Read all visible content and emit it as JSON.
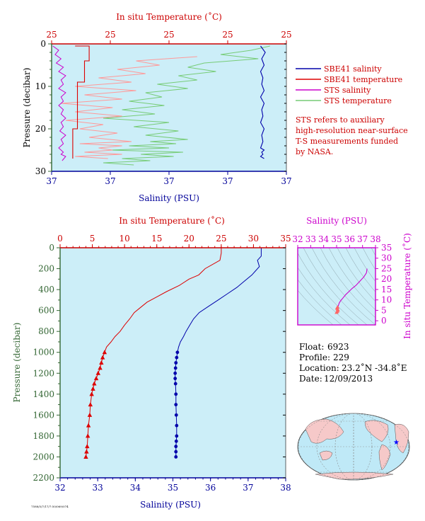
{
  "colors": {
    "plot_bg": "#cceef8",
    "sbe_salinity": "#0000aa",
    "sbe_temperature": "#dd0000",
    "sts_salinity": "#cc00cc",
    "sts_temperature": "#77cc77",
    "sts_temperature_pink": "#ff9999",
    "axis_red": "#cc0000",
    "axis_blue": "#000099",
    "axis_green": "#336633",
    "axis_magenta": "#cc00cc"
  },
  "legend": {
    "items": [
      {
        "label": "SBE41 salinity",
        "color": "#0000aa"
      },
      {
        "label": "SBE41 temperature",
        "color": "#dd0000"
      },
      {
        "label": "STS salinity",
        "color": "#cc00cc"
      },
      {
        "label": "STS temperature",
        "color": "#77cc77"
      }
    ],
    "note": [
      "STS refers to auxiliary",
      "high-resolution near-surface",
      "T-S measurements funded",
      "by NASA."
    ]
  },
  "info": {
    "float_label": "Float:",
    "float_value": "6923",
    "profile_label": "Profile:",
    "profile_value": "229",
    "location_label": "Location:",
    "location_value": "23.2˚N  -34.8˚E",
    "date_label": "Date:",
    "date_value": "12/09/2013"
  },
  "footer_id": "7588/5/7/17/7:50/069/074",
  "chart_data": [
    {
      "id": "near-surface",
      "type": "line",
      "top_axis_label": "In situ Temperature (˚C)",
      "bottom_axis_label": "Salinity (PSU)",
      "left_axis_label": "Pressure (decibar)",
      "top_ticks": [
        "25",
        "25",
        "25",
        "25",
        "25"
      ],
      "bottom_ticks": [
        "37",
        "37",
        "37",
        "37",
        "37"
      ],
      "left_ticks": [
        "0",
        "10",
        "20",
        "30"
      ],
      "ylim": [
        0,
        30
      ],
      "series": [
        {
          "key": "sts_temperature",
          "color": "#77cc77",
          "x": [
            0.93,
            0.85,
            0.72,
            0.88,
            0.65,
            0.58,
            0.7,
            0.54,
            0.62,
            0.45,
            0.58,
            0.4,
            0.47,
            0.33,
            0.48,
            0.3,
            0.44,
            0.22,
            0.5,
            0.35,
            0.54,
            0.4,
            0.58,
            0.42,
            0.53,
            0.33,
            0.5,
            0.25,
            0.56,
            0.38,
            0.52,
            0.3,
            0.42,
            0.22,
            0.35
          ],
          "y": [
            0.5,
            1.5,
            2.5,
            3.5,
            4.5,
            5.5,
            6.5,
            7.5,
            8.5,
            9.5,
            10.5,
            11.5,
            12.5,
            13.5,
            14.5,
            15.5,
            16.5,
            17.5,
            18.5,
            19.5,
            20.5,
            21.5,
            22.5,
            23.0,
            23.5,
            24.0,
            24.5,
            25.0,
            25.5,
            26.0,
            26.5,
            27.0,
            27.5,
            28.0,
            28.5
          ]
        },
        {
          "key": "sts_temperature_pink",
          "color": "#ff9999",
          "x": [
            0.62,
            0.36,
            0.46,
            0.28,
            0.4,
            0.2,
            0.34,
            0.1,
            0.36,
            0.14,
            0.3,
            0.04,
            0.26,
            0.1,
            0.3,
            0.06,
            0.22,
            0.12,
            0.28,
            0.16,
            0.34,
            0.12,
            0.3,
            0.2,
            0.26,
            0.14,
            0.3,
            0.1,
            0.24
          ],
          "y": [
            3.0,
            4.0,
            5.0,
            6.0,
            7.0,
            8.0,
            9.0,
            10.0,
            11.0,
            12.0,
            13.0,
            14.0,
            15.0,
            16.0,
            17.0,
            18.0,
            19.0,
            20.0,
            21.0,
            22.0,
            23.0,
            23.5,
            24.0,
            24.5,
            25.0,
            25.5,
            26.0,
            26.5,
            27.0
          ]
        },
        {
          "key": "sbe_temperature",
          "color": "#dd0000",
          "x": [
            0.1,
            0.16,
            0.16,
            0.14,
            0.14,
            0.11,
            0.11,
            0.09
          ],
          "y": [
            0.5,
            0.5,
            4.0,
            4.0,
            9.0,
            9.0,
            20.0,
            27.0
          ]
        },
        {
          "key": "sts_salinity",
          "color": "#cc00cc",
          "x": [
            0.005,
            0.03,
            0.015,
            0.04,
            0.02,
            0.05,
            0.03,
            0.06,
            0.04,
            0.05,
            0.03,
            0.06,
            0.04,
            0.05,
            0.03,
            0.05,
            0.04,
            0.06,
            0.04,
            0.05,
            0.035,
            0.06,
            0.04,
            0.05,
            0.03,
            0.05,
            0.04,
            0.06,
            0.045
          ],
          "y": [
            0.5,
            1.5,
            2.5,
            3.5,
            4.5,
            5.5,
            6.5,
            7.5,
            8.5,
            9.5,
            10.5,
            11.5,
            12.5,
            13.5,
            14.5,
            15.5,
            16.5,
            17.5,
            18.5,
            19.5,
            20.5,
            21.5,
            22.5,
            23.5,
            24.5,
            25.5,
            26.0,
            26.5,
            27.5
          ]
        },
        {
          "key": "sbe_salinity",
          "color": "#0000aa",
          "x": [
            0.89,
            0.91,
            0.895,
            0.905,
            0.89,
            0.9,
            0.895,
            0.905,
            0.89,
            0.905,
            0.895,
            0.9,
            0.89,
            0.905,
            0.895,
            0.9,
            0.89,
            0.905,
            0.895,
            0.9,
            0.89,
            0.905
          ],
          "y": [
            0.5,
            2,
            3.5,
            5,
            6.5,
            8,
            9.5,
            11,
            12.5,
            14,
            15.5,
            17,
            18.5,
            20,
            21.5,
            23,
            24.5,
            25,
            25.5,
            26,
            26.5,
            27
          ]
        }
      ]
    },
    {
      "id": "full-profile",
      "type": "line",
      "top_axis_label": "In situ Temperature (˚C)",
      "bottom_axis_label": "Salinity (PSU)",
      "left_axis_label": "Pressure (decibar)",
      "top_ticks": [
        "0",
        "5",
        "10",
        "15",
        "20",
        "25",
        "30",
        "35"
      ],
      "bottom_ticks": [
        "32",
        "33",
        "34",
        "35",
        "36",
        "37",
        "38"
      ],
      "left_ticks": [
        "0",
        "200",
        "400",
        "600",
        "800",
        "1000",
        "1200",
        "1400",
        "1600",
        "1800",
        "2000",
        "2200"
      ],
      "xlim_temperature": [
        0,
        35
      ],
      "xlim_salinity": [
        32,
        38
      ],
      "ylim": [
        0,
        2200
      ],
      "temperature": {
        "color": "#dd0000",
        "x": [
          25.0,
          25.0,
          24.8,
          22.5,
          21.5,
          20.0,
          18.5,
          16.5,
          15.0,
          13.5,
          12.5,
          11.5,
          10.8,
          10.0,
          9.3,
          8.5,
          7.9,
          7.2,
          6.9,
          6.6,
          6.4,
          6.2,
          5.9,
          5.6,
          5.3,
          5.1,
          4.9,
          4.7,
          4.6,
          4.4,
          4.3,
          4.2,
          4.1,
          4.0
        ],
        "y": [
          0,
          50,
          120,
          200,
          260,
          300,
          360,
          420,
          470,
          520,
          570,
          620,
          680,
          740,
          800,
          850,
          900,
          950,
          1000,
          1050,
          1100,
          1150,
          1200,
          1250,
          1300,
          1350,
          1400,
          1500,
          1600,
          1700,
          1800,
          1900,
          1950,
          2000
        ]
      },
      "temperature_markers_from": 1000,
      "salinity": {
        "color": "#0000aa",
        "x": [
          37.35,
          37.35,
          37.25,
          37.3,
          37.2,
          37.1,
          36.9,
          36.7,
          36.45,
          36.2,
          35.95,
          35.7,
          35.55,
          35.45,
          35.35,
          35.28,
          35.2,
          35.15,
          35.12,
          35.1,
          35.08,
          35.07,
          35.06,
          35.06,
          35.07,
          35.08,
          35.08,
          35.09,
          35.1,
          35.1,
          35.09,
          35.08,
          35.08,
          35.08
        ],
        "y": [
          0,
          80,
          120,
          180,
          220,
          260,
          320,
          380,
          440,
          500,
          560,
          620,
          680,
          740,
          800,
          850,
          900,
          950,
          1000,
          1050,
          1100,
          1150,
          1200,
          1250,
          1300,
          1400,
          1500,
          1600,
          1700,
          1800,
          1850,
          1900,
          1950,
          2000
        ]
      },
      "salinity_markers_from": 1000
    },
    {
      "id": "ts-diagram",
      "type": "scatter",
      "top_axis_label": "Salinity (PSU)",
      "right_axis_label": "In situ Temperature (˚C)",
      "top_ticks": [
        "32",
        "33",
        "34",
        "35",
        "36",
        "37",
        "38"
      ],
      "right_ticks": [
        "35",
        "30",
        "25",
        "20",
        "15",
        "10",
        "5",
        "0"
      ],
      "xlim": [
        32,
        38
      ],
      "ylim": [
        -2,
        35
      ],
      "line": {
        "color": "#cc00cc",
        "x": [
          37.35,
          37.3,
          37.1,
          36.8,
          36.5,
          36.2,
          35.95,
          35.7,
          35.5,
          35.3,
          35.2,
          35.12,
          35.08,
          35.06,
          35.08
        ],
        "y": [
          25.0,
          23.0,
          21.0,
          19.0,
          17.0,
          15.5,
          14.0,
          12.5,
          11.0,
          9.5,
          8.5,
          7.0,
          6.0,
          5.0,
          4.0
        ]
      },
      "cluster": {
        "color": "#ff6666",
        "x": [
          35.0,
          35.05,
          35.1,
          35.08,
          35.03,
          35.07
        ],
        "y": [
          4.0,
          4.5,
          5.0,
          5.5,
          6.0,
          6.5
        ]
      }
    }
  ],
  "map": {
    "marker_longitude": -34.8,
    "marker_latitude": 23.2,
    "marker_color": "#0000ff",
    "ocean_color": "#bfe9f7",
    "land_color": "#f6c9c9"
  }
}
